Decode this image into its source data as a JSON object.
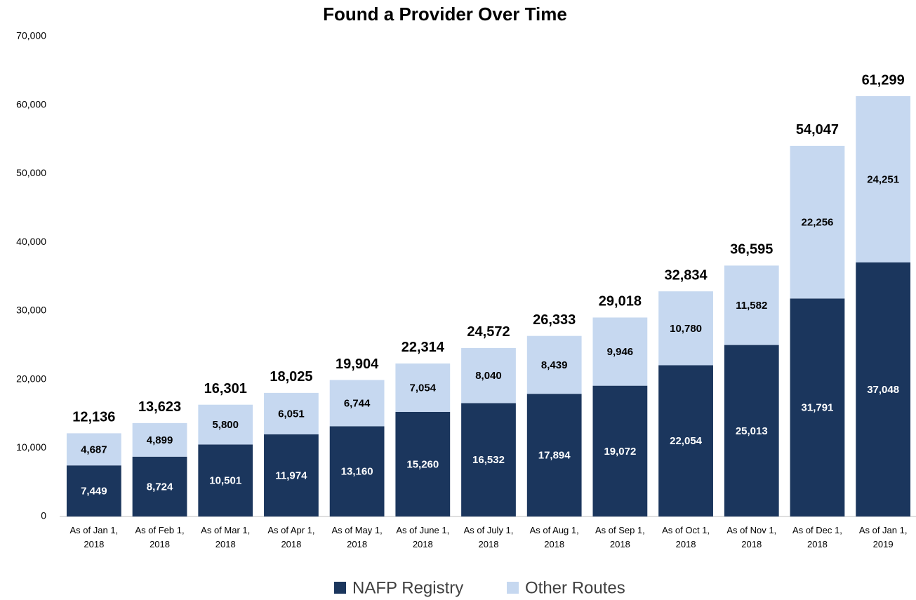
{
  "chart_data": {
    "type": "stacked_bar",
    "title": "Found a Provider Over Time",
    "categories": [
      "As of Jan 1, 2018",
      "As of Feb 1, 2018",
      "As of Mar 1, 2018",
      "As of Apr 1, 2018",
      "As of May 1, 2018",
      "As of June 1, 2018",
      "As of July 1, 2018",
      "As of Aug 1, 2018",
      "As of Sep 1, 2018",
      "As of Oct 1, 2018",
      "As of Nov 1, 2018",
      "As of Dec 1, 2018",
      "As of Jan 1, 2019"
    ],
    "series": [
      {
        "name": "NAFP Registry",
        "color": "#1b365d",
        "values": [
          7449,
          8724,
          10501,
          11974,
          13160,
          15260,
          16532,
          17894,
          19072,
          22054,
          25013,
          31791,
          37048
        ],
        "value_labels": [
          "7,449",
          "8,724",
          "10,501",
          "11,974",
          "13,160",
          "15,260",
          "16,532",
          "17,894",
          "19,072",
          "22,054",
          "25,013",
          "31,791",
          "37,048"
        ]
      },
      {
        "name": "Other Routes",
        "color": "#c6d8f0",
        "values": [
          4687,
          4899,
          5800,
          6051,
          6744,
          7054,
          8040,
          8439,
          9946,
          10780,
          11582,
          22256,
          24251
        ],
        "value_labels": [
          "4,687",
          "4,899",
          "5,800",
          "6,051",
          "6,744",
          "7,054",
          "8,040",
          "8,439",
          "9,946",
          "10,780",
          "11,582",
          "22,256",
          "24,251"
        ]
      }
    ],
    "totals": [
      12136,
      13623,
      16301,
      18025,
      19904,
      22314,
      24572,
      26333,
      29018,
      32834,
      36595,
      54047,
      61299
    ],
    "total_labels": [
      "12,136",
      "13,623",
      "16,301",
      "18,025",
      "19,904",
      "22,314",
      "24,572",
      "26,333",
      "29,018",
      "32,834",
      "36,595",
      "54,047",
      "61,299"
    ],
    "ylim": [
      0,
      70000
    ],
    "yticks": [
      0,
      {
        "value": 10000,
        "label": "10,000"
      },
      {
        "value": 20000,
        "label": "20,000"
      },
      {
        "value": 30000,
        "label": "30,000"
      },
      {
        "value": 40000,
        "label": "40,000"
      },
      {
        "value": 50000,
        "label": "50,000"
      },
      {
        "value": 60000,
        "label": "60,000"
      },
      {
        "value": 70000,
        "label": "70,000"
      }
    ],
    "legend": "bottom"
  }
}
